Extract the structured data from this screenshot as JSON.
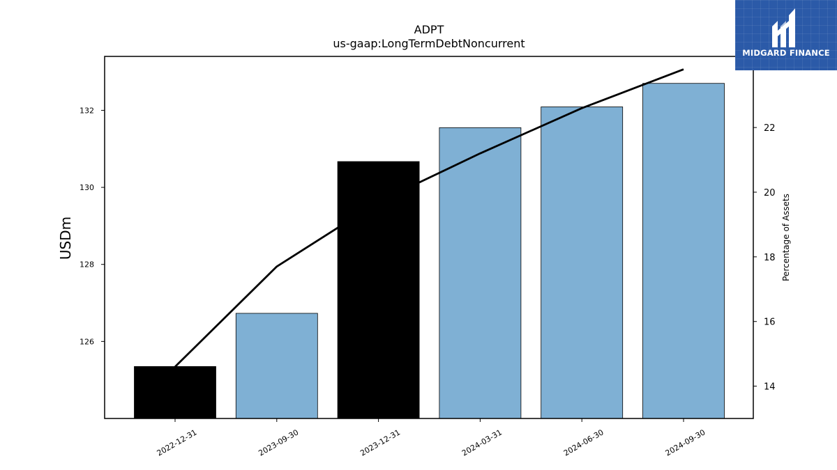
{
  "chart_data": {
    "type": "bar",
    "title": "ADPT",
    "subtitle": "us-gaap:LongTermDebtNoncurrent",
    "ylabel": "USDm",
    "y2label": "Percentage of Assets",
    "categories": [
      "2022-12-31",
      "2023-09-30",
      "2023-12-31",
      "2024-03-31",
      "2024-06-30",
      "2024-09-30"
    ],
    "series": [
      {
        "kind": "bar",
        "axis": "left",
        "values": [
          125.35,
          126.73,
          130.67,
          131.55,
          132.09,
          132.7
        ],
        "colors": [
          "#000000",
          "#7fb0d4",
          "#000000",
          "#7fb0d4",
          "#7fb0d4",
          "#7fb0d4"
        ]
      },
      {
        "kind": "line",
        "axis": "right",
        "values": [
          14.6,
          17.7,
          19.7,
          21.2,
          22.6,
          23.8
        ],
        "color": "#000000"
      }
    ],
    "ylim": [
      124.0,
      133.4
    ],
    "y2lim": [
      13.0,
      24.2
    ],
    "yticks": [
      126,
      128,
      130,
      132
    ],
    "y2ticks": [
      14,
      16,
      18,
      20,
      22
    ],
    "grid": false
  },
  "logo": {
    "text": "MIDGARD FINANCE",
    "bg_color": "#2b5aa8"
  }
}
